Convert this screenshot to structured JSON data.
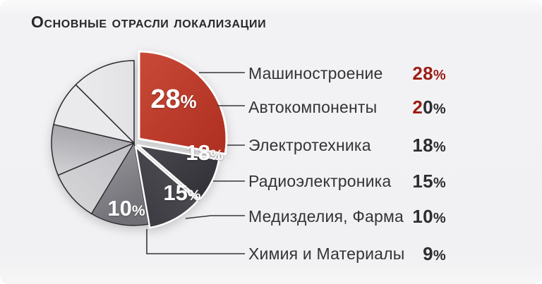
{
  "title": "Основные отрасли локализации",
  "colors": {
    "background": "#f1f1f3",
    "title_text": "#28282c",
    "legend_text": "#333338",
    "value_red": "#9b1d15",
    "value_dark": "#2c2c31",
    "leader_line": "#36363a",
    "accent_red": "#bd3a2c"
  },
  "chart_data": {
    "type": "pie",
    "title": "Основные отрасли локализации",
    "legend_position": "right",
    "total": 100,
    "slices": [
      {
        "label": "Машиностроение",
        "value": 28,
        "display": "28%",
        "color": "#bd3a2c",
        "on_pie_label": "28%",
        "exploded": true,
        "value_text_color": "#9b1d15"
      },
      {
        "label": "Автокомпоненты",
        "value": 20,
        "display": "20%",
        "color": "#e9e9eb",
        "on_pie_label": null,
        "exploded": false,
        "value_text_color": "#2c2c31",
        "first_char_color": "#9b1d15"
      },
      {
        "label": "Электротехника",
        "value": 18,
        "display": "18%",
        "color": "#3c3b41",
        "on_pie_label": "18%",
        "exploded": true,
        "value_text_color": "#2c2c31"
      },
      {
        "label": "Радиоэлектроника",
        "value": 15,
        "display": "15%",
        "color": "#47464c",
        "on_pie_label": "15%",
        "exploded": true,
        "value_text_color": "#2c2c31"
      },
      {
        "label": "Медизделия, Фарма",
        "value": 10,
        "display": "10%",
        "color": "#8a8a90",
        "on_pie_label": "10%",
        "exploded": false,
        "value_text_color": "#2c2c31"
      },
      {
        "label": "Химия и Материалы",
        "value": 9,
        "display": "9%",
        "color": "#d6d6d9",
        "on_pie_label": null,
        "exploded": false,
        "value_text_color": "#2c2c31"
      }
    ]
  }
}
